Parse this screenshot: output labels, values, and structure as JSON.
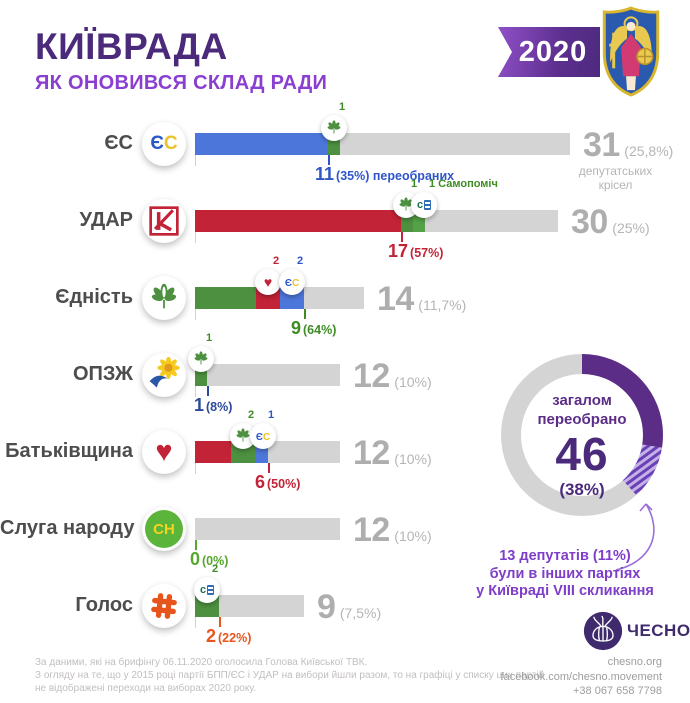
{
  "header": {
    "title": "КИЇВРАДА",
    "subtitle": "ЯК ОНОВИВСЯ СКЛАД РАДИ",
    "year": "2020"
  },
  "colors": {
    "title_purple": "#4b2a7b",
    "subtitle_purple": "#8b3fd0",
    "es_blue": "#4d76db",
    "udar_red": "#c22336",
    "unity_green": "#4d9140",
    "samopomich_green": "#55a148",
    "opzz_navy": "#2c4a9c",
    "sluga_green": "#55a82d",
    "golos_orange": "#e8551c",
    "bar_gray": "#d4d4d4",
    "donut_purple": "#5b2d86"
  },
  "chart_data": {
    "type": "bar",
    "title": "Як оновився склад Київради 2020",
    "total_council_seats": 120,
    "rows": [
      {
        "party": "ЄС",
        "logo": "es-logo",
        "total_seats": 31,
        "total_display": "31",
        "total_pct": "(25,8%)",
        "seats_note": "депутатських крісел",
        "value": {
          "num": "11",
          "pct": "(35%)",
          "suffix": "переобраних",
          "color": "#2f55c8"
        },
        "segments": [
          {
            "from": "ЄС",
            "seats": 11,
            "color": "#4d76db"
          },
          {
            "from": "Єдність",
            "seats": 1,
            "color": "#4d9140",
            "icon": "chestnut-icon",
            "badge": "1",
            "badge_color": "#3e8c26",
            "chip_seat": 11.5
          }
        ]
      },
      {
        "party": "УДАР",
        "logo": "udar-logo",
        "total_seats": 30,
        "total_display": "30",
        "total_pct": "(25%)",
        "value": {
          "num": "17",
          "pct": "(57%)",
          "suffix": "",
          "color": "#c22336"
        },
        "segments": [
          {
            "from": "УДАР",
            "seats": 17,
            "color": "#c22336"
          },
          {
            "from": "Єдність",
            "seats": 1,
            "color": "#4d9140",
            "icon": "chestnut-icon",
            "badge": "1",
            "badge_color": "#3e8c26",
            "chip_seat": 17.4
          },
          {
            "from": "Самопоміч",
            "seats": 1,
            "color": "#55a148",
            "icon": "samopomich-icon",
            "badge": "1 Самопоміч",
            "badge_color": "#3e8c26",
            "chip_seat": 18.9
          }
        ]
      },
      {
        "party": "Єдність",
        "logo": "unity-logo",
        "total_seats": 14,
        "total_display": "14",
        "total_pct": "(11,7%)",
        "value": {
          "num": "9",
          "pct": "(64%)",
          "suffix": "",
          "color": "#3e8c26"
        },
        "segments": [
          {
            "from": "Єдність",
            "seats": 5,
            "color": "#4d9140"
          },
          {
            "from": "Батьківщина",
            "seats": 2,
            "color": "#c22336",
            "icon": "heart-icon",
            "badge": "2",
            "badge_color": "#c22336",
            "chip_seat": 6
          },
          {
            "from": "ЄС",
            "seats": 2,
            "color": "#4d76db",
            "icon": "es-icon",
            "badge": "2",
            "badge_color": "#2f55c8",
            "chip_seat": 8
          }
        ]
      },
      {
        "party": "ОПЗЖ",
        "logo": "opzz-logo",
        "total_seats": 12,
        "total_display": "12",
        "total_pct": "(10%)",
        "value": {
          "num": "1",
          "pct": "(8%)",
          "suffix": "",
          "color": "#2c4a9c"
        },
        "segments": [
          {
            "from": "Єдність",
            "seats": 1,
            "color": "#4d9140",
            "icon": "chestnut-icon",
            "badge": "1",
            "badge_color": "#3e8c26",
            "chip_seat": 0.5
          }
        ]
      },
      {
        "party": "Батьківщина",
        "logo": "batkivshchyna-logo",
        "total_seats": 12,
        "total_display": "12",
        "total_pct": "(10%)",
        "value": {
          "num": "6",
          "pct": "(50%)",
          "suffix": "",
          "color": "#c22336"
        },
        "segments": [
          {
            "from": "Батьківщина",
            "seats": 3,
            "color": "#c22336"
          },
          {
            "from": "Єдність",
            "seats": 2,
            "color": "#4d9140",
            "icon": "chestnut-icon",
            "badge": "2",
            "badge_color": "#3e8c26",
            "chip_seat": 4
          },
          {
            "from": "ЄС",
            "seats": 1,
            "color": "#4d76db",
            "icon": "es-icon",
            "badge": "1",
            "badge_color": "#2f55c8",
            "chip_seat": 5.6
          }
        ]
      },
      {
        "party": "Слуга народу",
        "logo": "sluga-logo",
        "total_seats": 12,
        "total_display": "12",
        "total_pct": "(10%)",
        "value": {
          "num": "0",
          "pct": "(0%)",
          "suffix": "",
          "color": "#55a82d"
        },
        "segments": []
      },
      {
        "party": "Голос",
        "logo": "golos-logo",
        "total_seats": 9,
        "total_display": "9",
        "total_pct": "(7,5%)",
        "value": {
          "num": "2",
          "pct": "(22%)",
          "suffix": "",
          "color": "#e8551c"
        },
        "segments": [
          {
            "from": "Самопоміч",
            "seats": 2,
            "color": "#4d9140",
            "icon": "samopomich-icon",
            "badge": "2",
            "badge_color": "#3e8c26",
            "chip_seat": 1
          }
        ]
      }
    ],
    "donut": {
      "label_line1": "загалом",
      "label_line2": "переобрано",
      "value": "46",
      "value_num": 46,
      "pct": "(38%)",
      "solid_fraction": 0.275,
      "hatched_fraction": 0.108,
      "solid_color": "#5b2d86",
      "hatch_color_a": "#c3b2e8",
      "hatch_color_b": "#6b3fb5",
      "track_color": "#d4d4d4",
      "note_line1": "13 депутатів (11%)",
      "note_line2": "були в інших партіях",
      "note_line3": "у Київраді VIII скликання"
    }
  },
  "brand": {
    "name": "ЧЕСНО"
  },
  "footer": {
    "note_line1": "За даними, які на брифінгу 06.11.2020 оголосила Голова Київської ТВК.",
    "note_line2": "З огляду на те, що у 2015 році партії БПП/ЄС і УДАР на вибори йшли разом, то на графіці у списку цих партій",
    "note_line3": "не відображені переходи на виборах 2020 року.",
    "site": "chesno.org",
    "facebook": "facebook.com/chesno.movement",
    "phone": "+38 067 658 7798"
  }
}
